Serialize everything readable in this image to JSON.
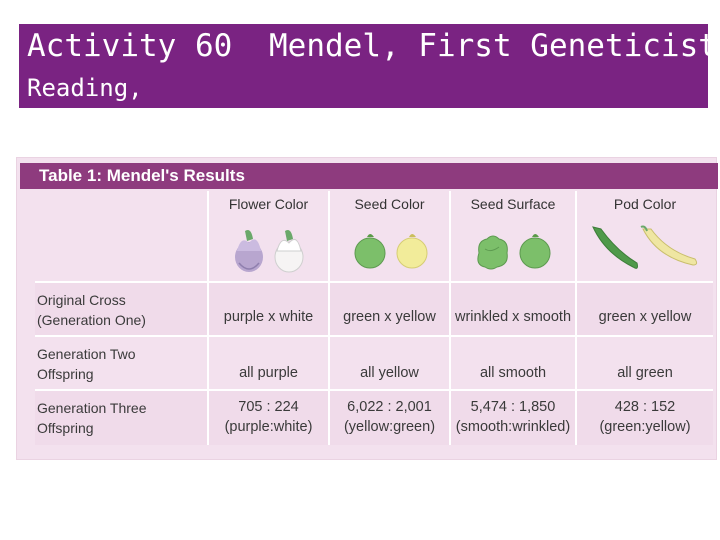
{
  "banner": {
    "activity": "Activity 60",
    "title": "Mendel, First Geneticist",
    "type": "Reading,"
  },
  "table": {
    "title": "Table 1: Mendel's Results",
    "columns": [
      "Flower Color",
      "Seed Color",
      "Seed Surface",
      "Pod Color"
    ],
    "rows": [
      {
        "label_line1": "Original Cross",
        "label_line2": "(Generation One)",
        "values": [
          {
            "line1": "purple x white",
            "line2": ""
          },
          {
            "line1": "green x yellow",
            "line2": ""
          },
          {
            "line1": "wrinkled x smooth",
            "line2": ""
          },
          {
            "line1": "green x yellow",
            "line2": ""
          }
        ]
      },
      {
        "label_line1": "Generation Two",
        "label_line2": "Offspring",
        "values": [
          {
            "line1": "all purple",
            "line2": ""
          },
          {
            "line1": "all yellow",
            "line2": ""
          },
          {
            "line1": "all smooth",
            "line2": ""
          },
          {
            "line1": "all green",
            "line2": ""
          }
        ]
      },
      {
        "label_line1": "Generation Three",
        "label_line2": "Offspring",
        "values": [
          {
            "line1": "705 : 224",
            "line2": "(purple:white)"
          },
          {
            "line1": "6,022 : 2,001",
            "line2": "(yellow:green)"
          },
          {
            "line1": "5,474 : 1,850",
            "line2": "(smooth:wrinkled)"
          },
          {
            "line1": "428 : 152",
            "line2": "(green:yellow)"
          }
        ]
      }
    ],
    "icons": [
      "purple-flower-icon",
      "white-flower-icon",
      "green-seed-icon",
      "yellow-seed-icon",
      "wrinkled-seed-icon",
      "smooth-seed-icon",
      "green-pod-icon",
      "yellow-pod-icon"
    ],
    "colors": {
      "banner_bg": "#7a2382",
      "title_bar_bg": "#8e3b7e",
      "table_bg": "#f3e1ee",
      "purple_flower": "#b8a6cf",
      "green_seed": "#7cbf6a",
      "yellow_seed": "#f2ec9a",
      "green_pod": "#4f9a4a",
      "yellow_pod": "#efe6a2"
    }
  }
}
